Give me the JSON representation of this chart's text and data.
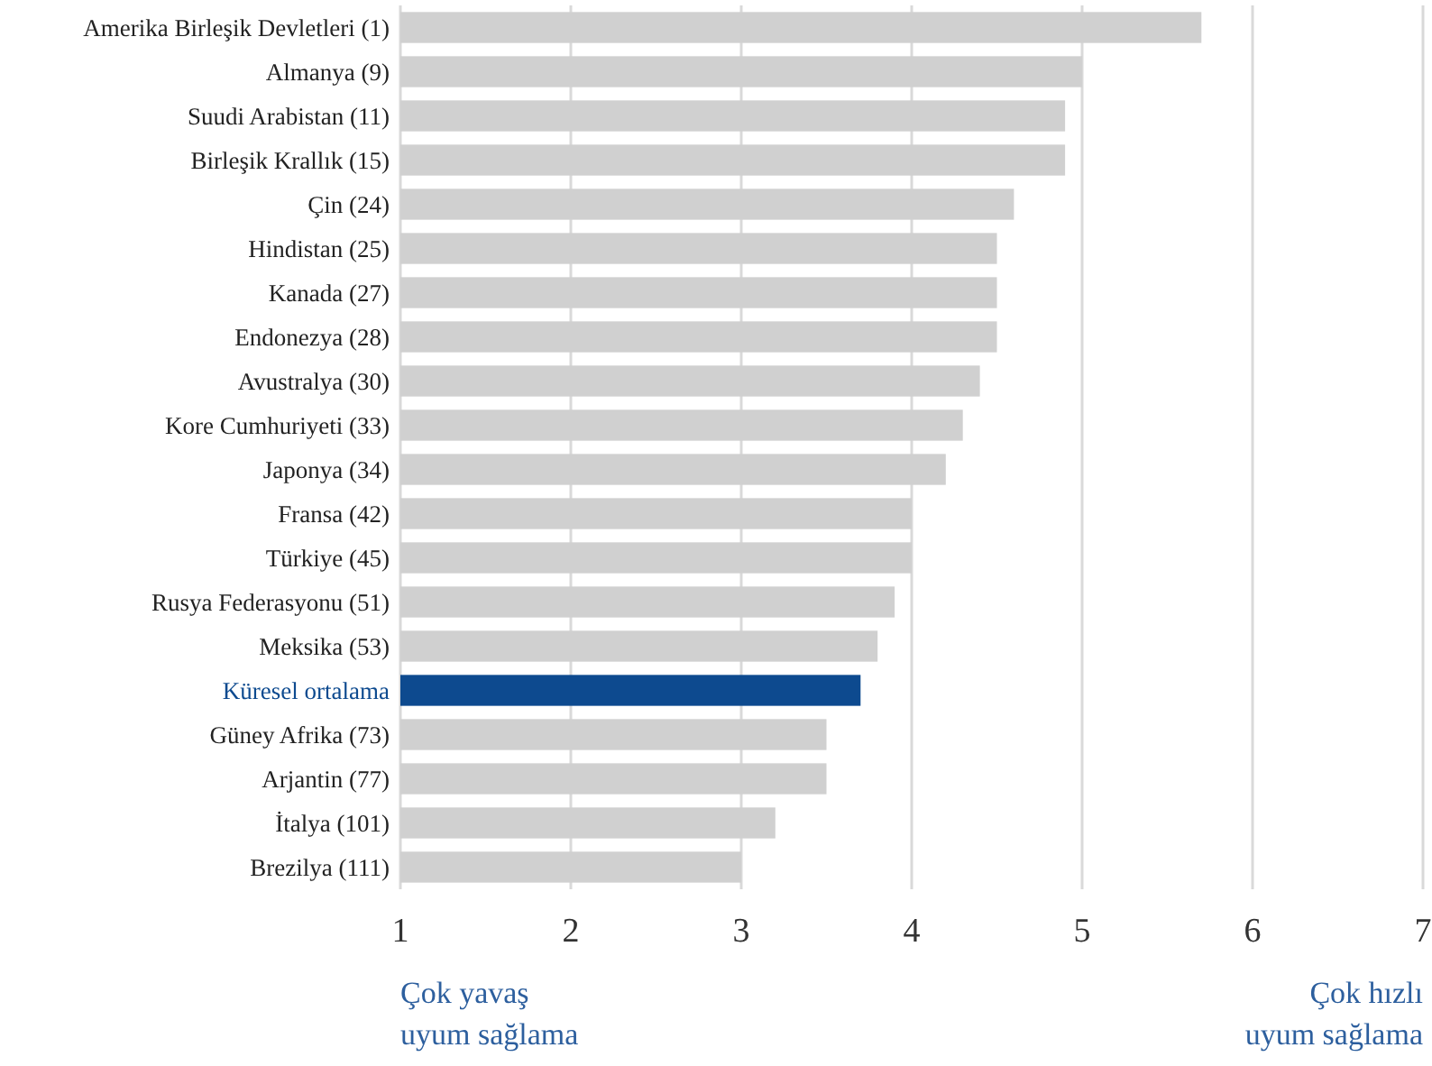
{
  "chart_data": {
    "type": "bar",
    "orientation": "horizontal",
    "categories": [
      "Amerika Birleşik Devletleri (1)",
      "Almanya (9)",
      "Suudi Arabistan (11)",
      "Birleşik Krallık (15)",
      "Çin (24)",
      "Hindistan (25)",
      "Kanada (27)",
      "Endonezya (28)",
      "Avustralya (30)",
      "Kore Cumhuriyeti (33)",
      "Japonya (34)",
      "Fransa (42)",
      "Türkiye (45)",
      "Rusya Federasyonu (51)",
      "Meksika (53)",
      "Küresel ortalama",
      "Güney Afrika (73)",
      "Arjantin (77)",
      "İtalya (101)",
      "Brezilya (111)"
    ],
    "values": [
      5.7,
      5.0,
      4.9,
      4.9,
      4.6,
      4.5,
      4.5,
      4.5,
      4.4,
      4.3,
      4.2,
      4.0,
      4.0,
      3.9,
      3.8,
      3.7,
      3.5,
      3.5,
      3.2,
      3.0
    ],
    "colors": [
      "#d0d0d0",
      "#d0d0d0",
      "#d0d0d0",
      "#d0d0d0",
      "#d0d0d0",
      "#d0d0d0",
      "#d0d0d0",
      "#d0d0d0",
      "#d0d0d0",
      "#d0d0d0",
      "#d0d0d0",
      "#d0d0d0",
      "#d0d0d0",
      "#d0d0d0",
      "#d0d0d0",
      "#0d4a8f",
      "#d0d0d0",
      "#d0d0d0",
      "#d0d0d0",
      "#d0d0d0"
    ],
    "xlim": [
      1,
      7
    ],
    "xticks": [
      1,
      2,
      3,
      4,
      5,
      6,
      7
    ],
    "grid": "x",
    "annotations": [
      "Çok yavaş\nuyum sağlama",
      "Çok hızlı\nuyum sağlama"
    ]
  }
}
